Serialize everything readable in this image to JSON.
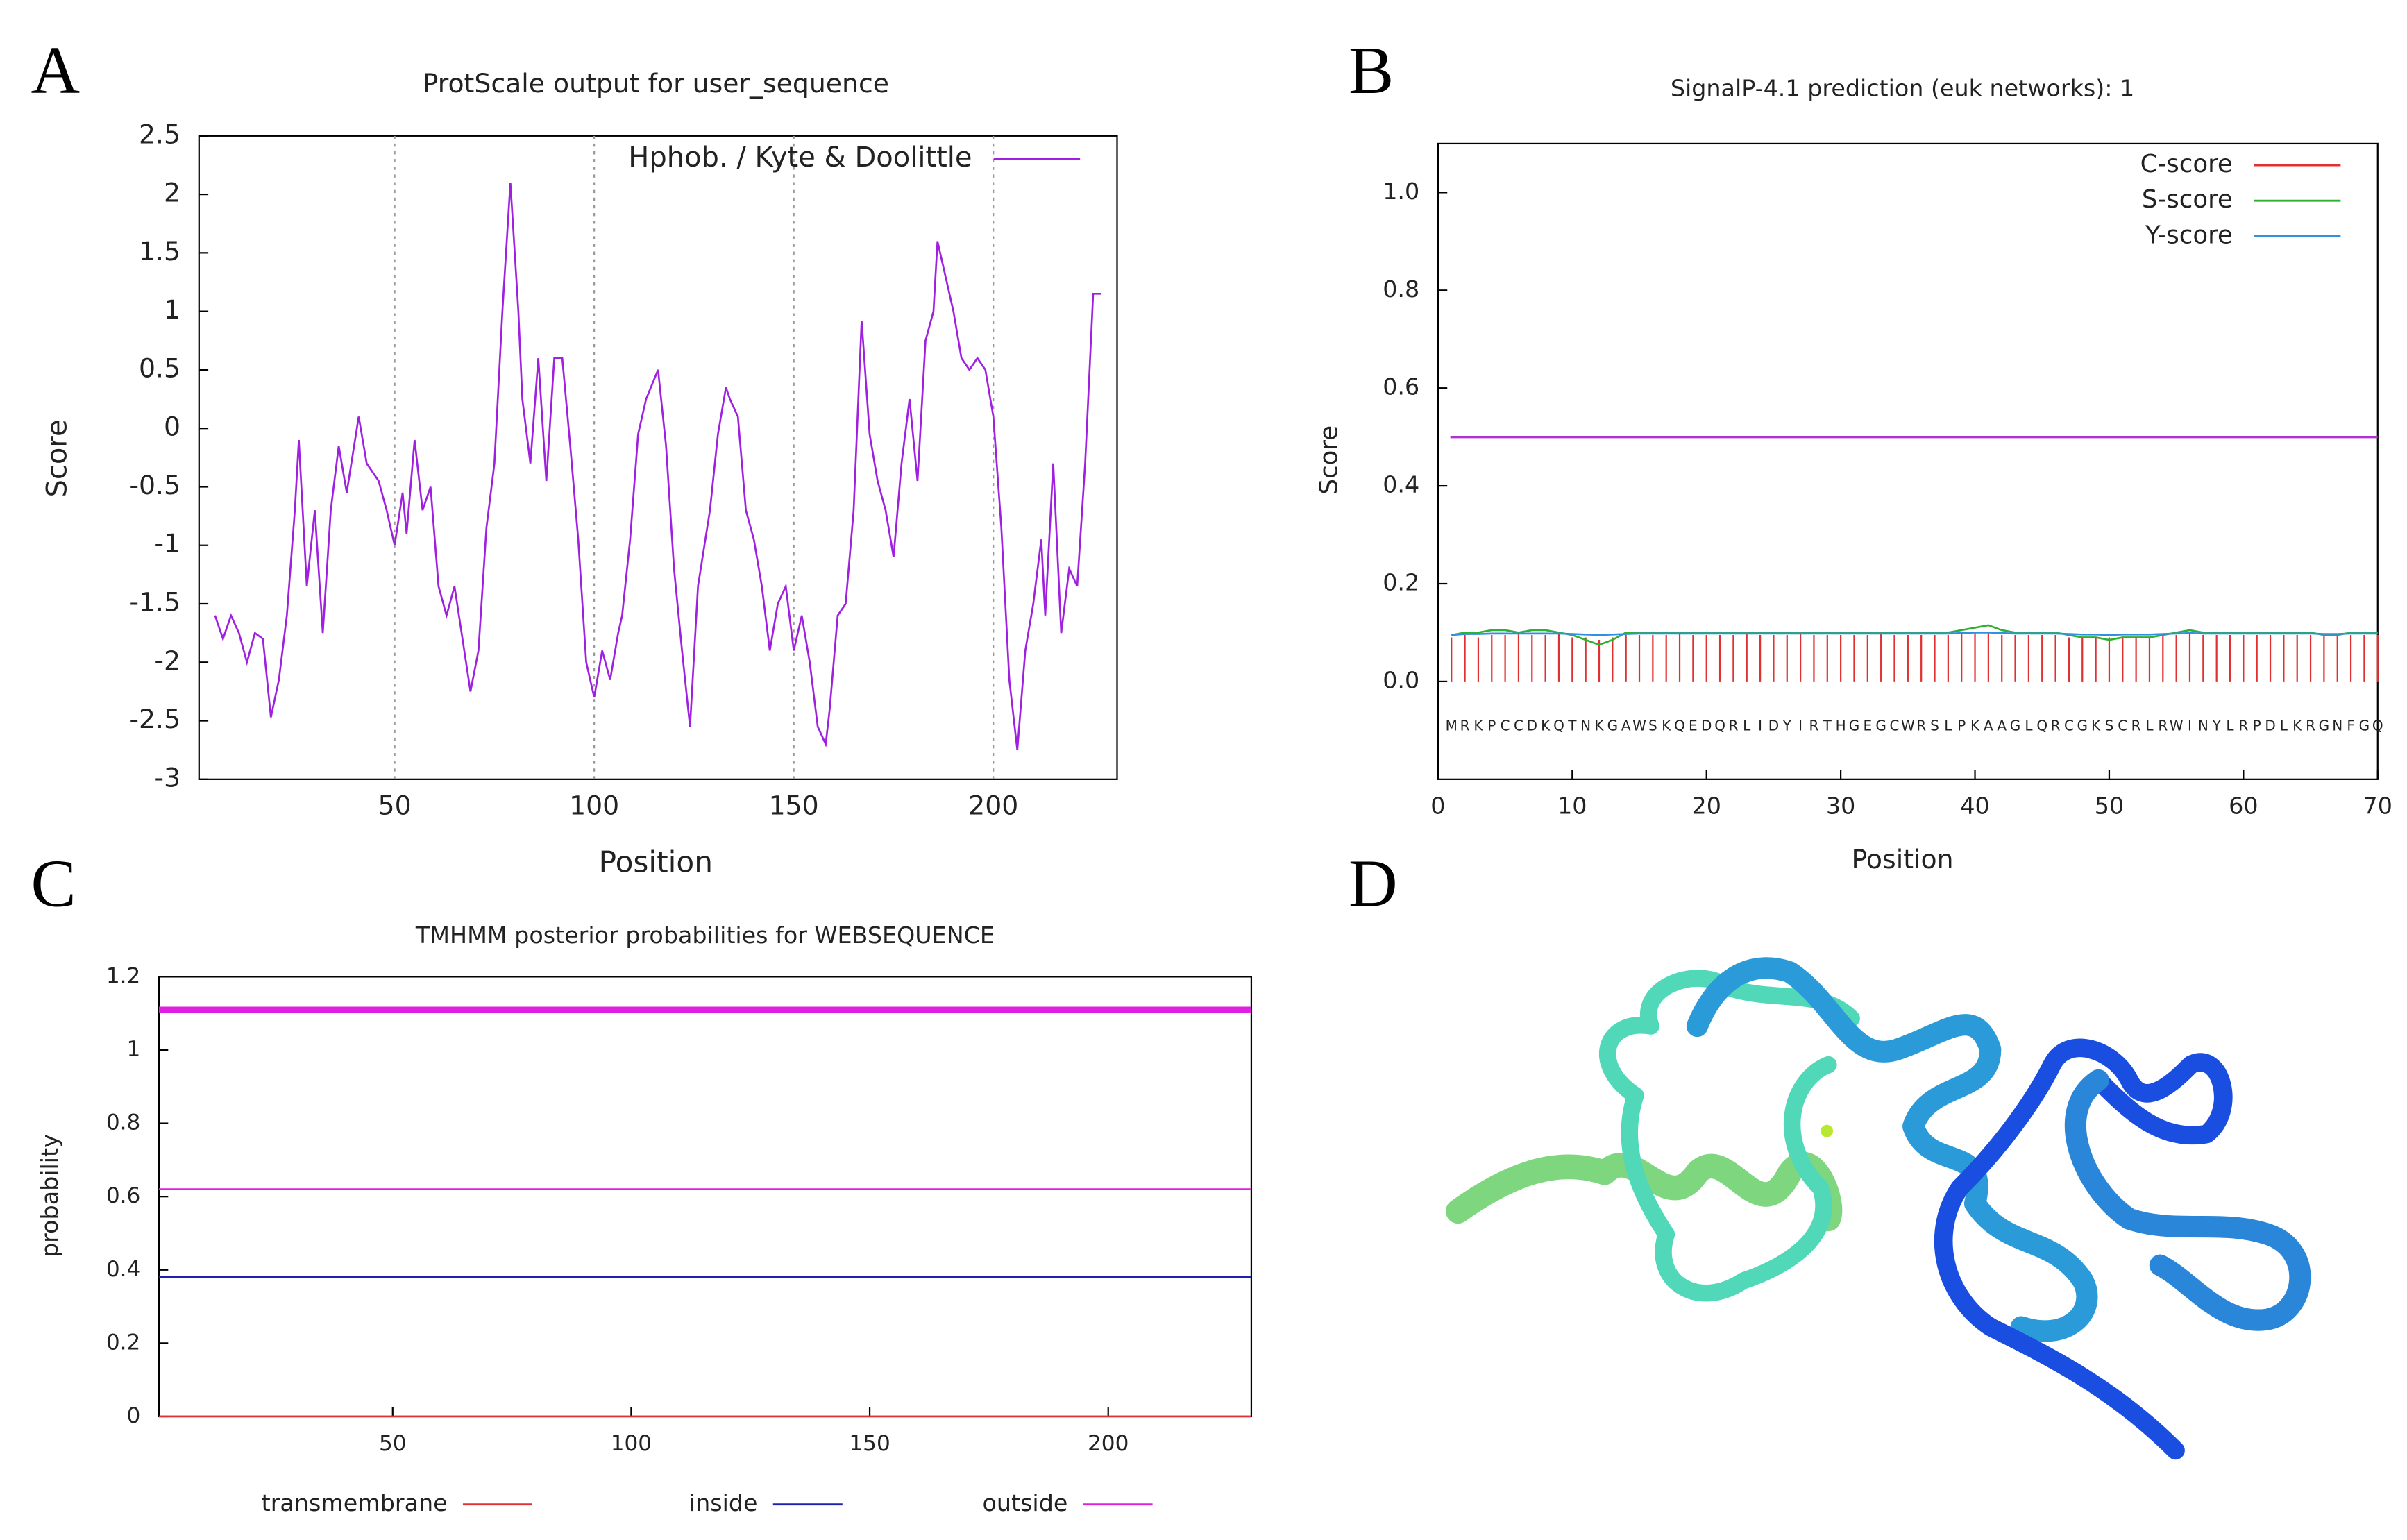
{
  "panel_labels": [
    "A",
    "B",
    "C",
    "D"
  ],
  "chart_data": [
    {
      "type": "line",
      "title": "ProtScale output for user_sequence",
      "x_label": "Position",
      "y_label": "Score",
      "xlim": [
        1,
        231
      ],
      "xticks": [
        50,
        100,
        150,
        200
      ],
      "ylim": [
        -3,
        2.5
      ],
      "yticks": [
        -3,
        -2.5,
        -2,
        -1.5,
        -1,
        -0.5,
        0,
        0.5,
        1,
        1.5,
        2,
        2.5
      ],
      "grid": true,
      "legend": "upper right",
      "series": [
        {
          "name": "Hphob. / Kyte & Doolittle",
          "color": "#a020e0",
          "x": [
            5,
            7,
            9,
            11,
            13,
            15,
            17,
            19,
            21,
            23,
            25,
            26,
            28,
            30,
            32,
            34,
            36,
            38,
            41,
            43,
            46,
            48,
            50,
            52,
            53,
            55,
            57,
            59,
            61,
            63,
            65,
            67,
            69,
            71,
            73,
            75,
            77,
            79,
            81,
            82,
            84,
            86,
            88,
            90,
            92,
            94,
            96,
            98,
            100,
            102,
            104,
            106,
            107,
            109,
            111,
            113,
            116,
            118,
            120,
            122,
            124,
            126,
            129,
            131,
            133,
            134,
            136,
            138,
            140,
            142,
            144,
            146,
            148,
            150,
            152,
            154,
            156,
            158,
            159,
            161,
            163,
            165,
            167,
            169,
            171,
            173,
            175,
            177,
            179,
            181,
            183,
            185,
            186,
            188,
            190,
            192,
            194,
            196,
            198,
            200,
            202,
            204,
            206,
            208,
            210,
            212,
            213,
            215,
            217,
            219,
            221,
            223,
            225,
            227
          ],
          "values": [
            -1.6,
            -1.8,
            -1.6,
            -1.75,
            -2.0,
            -1.75,
            -1.8,
            -2.47,
            -2.15,
            -1.6,
            -0.7,
            -0.1,
            -1.35,
            -0.7,
            -1.75,
            -0.7,
            -0.15,
            -0.55,
            0.1,
            -0.3,
            -0.45,
            -0.7,
            -1.0,
            -0.55,
            -0.9,
            -0.1,
            -0.7,
            -0.5,
            -1.35,
            -1.6,
            -1.35,
            -1.8,
            -2.25,
            -1.9,
            -0.85,
            -0.3,
            1.0,
            2.1,
            1.0,
            0.25,
            -0.3,
            0.6,
            -0.45,
            0.6,
            0.6,
            -0.15,
            -0.95,
            -2.0,
            -2.3,
            -1.9,
            -2.15,
            -1.75,
            -1.6,
            -0.95,
            -0.05,
            0.25,
            0.5,
            -0.15,
            -1.2,
            -1.9,
            -2.55,
            -1.35,
            -0.7,
            -0.05,
            0.35,
            0.25,
            0.1,
            -0.7,
            -0.95,
            -1.35,
            -1.9,
            -1.5,
            -1.35,
            -1.9,
            -1.6,
            -2.0,
            -2.55,
            -2.7,
            -2.4,
            -1.6,
            -1.5,
            -0.7,
            0.92,
            -0.05,
            -0.45,
            -0.7,
            -1.1,
            -0.3,
            0.25,
            -0.45,
            0.75,
            1.0,
            1.6,
            1.3,
            1.0,
            0.6,
            0.5,
            0.6,
            0.5,
            0.1,
            -0.85,
            -2.15,
            -2.75,
            -1.9,
            -1.5,
            -0.95,
            -1.6,
            -0.3,
            -1.75,
            -1.2,
            -1.35,
            -0.3,
            1.15,
            1.15
          ]
        }
      ]
    },
    {
      "type": "line",
      "title": "SignalP-4.1 prediction (euk networks): 1",
      "x_label": "Position",
      "y_label": "Score",
      "xlim": [
        0,
        70
      ],
      "xticks": [
        0,
        10,
        20,
        30,
        40,
        50,
        60,
        70
      ],
      "ylim": [
        -0.2,
        1.1
      ],
      "yticks": [
        {
          "value": 0,
          "label": "0.0"
        },
        0.2,
        0.4,
        0.6,
        0.8,
        {
          "value": 1,
          "label": "1.0"
        }
      ],
      "grid": false,
      "legend": "upper right",
      "threshold": 0.5,
      "threshold_color": "#b030d0",
      "residues": [
        "M",
        "R",
        "K",
        "P",
        "C",
        "C",
        "D",
        "K",
        "Q",
        "T",
        "N",
        "K",
        "G",
        "A",
        "W",
        "S",
        "K",
        "Q",
        "E",
        "D",
        "Q",
        "R",
        "L",
        "I",
        "D",
        "Y",
        "I",
        "R",
        "T",
        "H",
        "G",
        "E",
        "G",
        "C",
        "W",
        "R",
        "S",
        "L",
        "P",
        "K",
        "A",
        "A",
        "G",
        "L",
        "Q",
        "R",
        "C",
        "G",
        "K",
        "S",
        "C",
        "R",
        "L",
        "R",
        "W",
        "I",
        "N",
        "Y",
        "L",
        "R",
        "P",
        "D",
        "L",
        "K",
        "R",
        "G",
        "N",
        "F",
        "G",
        "Q"
      ],
      "x": [
        1,
        2,
        3,
        4,
        5,
        6,
        7,
        8,
        9,
        10,
        11,
        12,
        13,
        14,
        15,
        16,
        17,
        18,
        19,
        20,
        21,
        22,
        23,
        24,
        25,
        26,
        27,
        28,
        29,
        30,
        31,
        32,
        33,
        34,
        35,
        36,
        37,
        38,
        39,
        40,
        41,
        42,
        43,
        44,
        45,
        46,
        47,
        48,
        49,
        50,
        51,
        52,
        53,
        54,
        55,
        56,
        57,
        58,
        59,
        60,
        61,
        62,
        63,
        64,
        65,
        66,
        67,
        68,
        69,
        70
      ],
      "series": [
        {
          "name": "C-score",
          "color": "#e03030",
          "style": "impulses",
          "values": [
            0.09,
            0.095,
            0.09,
            0.095,
            0.095,
            0.1,
            0.095,
            0.095,
            0.1,
            0.09,
            0.09,
            0.085,
            0.09,
            0.095,
            0.095,
            0.095,
            0.095,
            0.1,
            0.095,
            0.095,
            0.095,
            0.095,
            0.1,
            0.095,
            0.095,
            0.095,
            0.1,
            0.095,
            0.095,
            0.095,
            0.095,
            0.095,
            0.1,
            0.095,
            0.095,
            0.095,
            0.095,
            0.095,
            0.1,
            0.1,
            0.1,
            0.095,
            0.095,
            0.095,
            0.095,
            0.095,
            0.09,
            0.09,
            0.09,
            0.09,
            0.09,
            0.09,
            0.09,
            0.095,
            0.095,
            0.1,
            0.095,
            0.095,
            0.095,
            0.095,
            0.095,
            0.095,
            0.095,
            0.095,
            0.095,
            0.095,
            0.095,
            0.095,
            0.095,
            0.095
          ]
        },
        {
          "name": "S-score",
          "color": "#30b030",
          "values": [
            0.095,
            0.1,
            0.1,
            0.105,
            0.105,
            0.1,
            0.105,
            0.105,
            0.1,
            0.095,
            0.085,
            0.075,
            0.085,
            0.1,
            0.1,
            0.1,
            0.1,
            0.1,
            0.1,
            0.1,
            0.1,
            0.1,
            0.1,
            0.1,
            0.1,
            0.1,
            0.1,
            0.1,
            0.1,
            0.1,
            0.1,
            0.1,
            0.1,
            0.1,
            0.1,
            0.1,
            0.1,
            0.1,
            0.105,
            0.11,
            0.115,
            0.105,
            0.1,
            0.1,
            0.1,
            0.1,
            0.095,
            0.09,
            0.09,
            0.085,
            0.09,
            0.09,
            0.09,
            0.095,
            0.1,
            0.105,
            0.1,
            0.1,
            0.1,
            0.1,
            0.1,
            0.1,
            0.1,
            0.1,
            0.1,
            0.095,
            0.095,
            0.1,
            0.1,
            0.1
          ]
        },
        {
          "name": "Y-score",
          "color": "#3090e0",
          "values": [
            0.095,
            0.097,
            0.097,
            0.098,
            0.098,
            0.098,
            0.098,
            0.098,
            0.098,
            0.097,
            0.096,
            0.095,
            0.096,
            0.097,
            0.098,
            0.098,
            0.098,
            0.098,
            0.098,
            0.098,
            0.098,
            0.098,
            0.098,
            0.098,
            0.098,
            0.098,
            0.098,
            0.098,
            0.098,
            0.098,
            0.098,
            0.098,
            0.098,
            0.098,
            0.098,
            0.098,
            0.098,
            0.098,
            0.099,
            0.1,
            0.1,
            0.099,
            0.098,
            0.098,
            0.098,
            0.098,
            0.097,
            0.096,
            0.096,
            0.095,
            0.096,
            0.096,
            0.096,
            0.097,
            0.098,
            0.099,
            0.098,
            0.098,
            0.098,
            0.098,
            0.098,
            0.098,
            0.098,
            0.098,
            0.098,
            0.097,
            0.097,
            0.098,
            0.098,
            0.098
          ]
        }
      ]
    },
    {
      "type": "line",
      "title": "TMHMM posterior probabilities for WEBSEQUENCE",
      "y_label": "probability",
      "xlim": [
        1,
        230
      ],
      "xticks": [
        50,
        100,
        150,
        200
      ],
      "ylim": [
        0,
        1.2
      ],
      "yticks": [
        0,
        0.2,
        0.4,
        0.6,
        0.8,
        1,
        1.2
      ],
      "grid": false,
      "legend": "bottom",
      "topology": 1.11,
      "topology_color": "#e020e0",
      "series": [
        {
          "name": "transmembrane",
          "color": "#e03030",
          "x": [
            1,
            230
          ],
          "values": [
            0,
            0
          ]
        },
        {
          "name": "inside",
          "color": "#2020b0",
          "x": [
            1,
            230
          ],
          "values": [
            0.38,
            0.38
          ]
        },
        {
          "name": "outside",
          "color": "#e020e0",
          "x": [
            1,
            230
          ],
          "values": [
            0.62,
            0.62
          ]
        }
      ]
    }
  ]
}
